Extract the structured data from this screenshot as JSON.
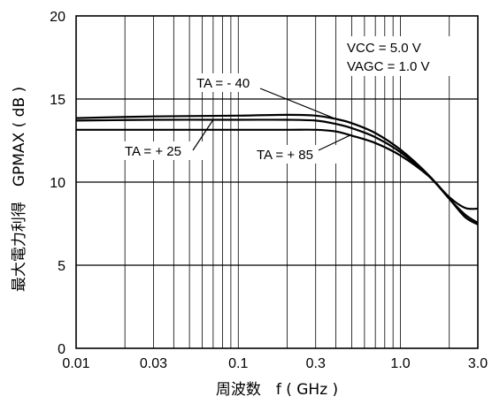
{
  "chart_data": {
    "type": "line",
    "x_scale": "log",
    "xlim": [
      0.01,
      3.0
    ],
    "ylim": [
      0,
      20
    ],
    "xlabel": "周波数　f ( GHz )",
    "ylabel": "最大電力利得　GPMAX ( dB )",
    "x_tick_labels": [
      "0.01",
      "0.03",
      "0.1",
      "0.3",
      "1.0",
      "3.0"
    ],
    "x_tick_values": [
      0.01,
      0.03,
      0.1,
      0.3,
      1.0,
      3.0
    ],
    "y_tick_labels": [
      "0",
      "5",
      "10",
      "15",
      "20"
    ],
    "y_tick_values": [
      0,
      5,
      10,
      15,
      20
    ],
    "grid": true,
    "conditions": [
      "VCC = 5.0 V",
      "VAGC = 1.0 V"
    ],
    "series": [
      {
        "name": "TA =  - 40",
        "points": [
          [
            0.01,
            13.85
          ],
          [
            0.03,
            13.95
          ],
          [
            0.1,
            14.0
          ],
          [
            0.2,
            14.05
          ],
          [
            0.3,
            14.0
          ],
          [
            0.4,
            13.8
          ],
          [
            0.5,
            13.55
          ],
          [
            0.7,
            12.95
          ],
          [
            1.0,
            11.95
          ],
          [
            1.5,
            10.4
          ],
          [
            2.0,
            9.0
          ],
          [
            2.5,
            8.05
          ],
          [
            3.0,
            7.55
          ]
        ]
      },
      {
        "name": "TA =  + 25",
        "points": [
          [
            0.01,
            13.7
          ],
          [
            0.03,
            13.75
          ],
          [
            0.1,
            13.75
          ],
          [
            0.2,
            13.75
          ],
          [
            0.3,
            13.7
          ],
          [
            0.4,
            13.5
          ],
          [
            0.5,
            13.25
          ],
          [
            0.7,
            12.7
          ],
          [
            1.0,
            11.8
          ],
          [
            1.5,
            10.35
          ],
          [
            2.0,
            9.0
          ],
          [
            2.5,
            7.9
          ],
          [
            3.0,
            7.45
          ]
        ]
      },
      {
        "name": "TA =  + 85",
        "points": [
          [
            0.01,
            13.15
          ],
          [
            0.03,
            13.15
          ],
          [
            0.1,
            13.15
          ],
          [
            0.2,
            13.15
          ],
          [
            0.3,
            13.15
          ],
          [
            0.4,
            13.05
          ],
          [
            0.5,
            12.8
          ],
          [
            0.7,
            12.35
          ],
          [
            1.0,
            11.6
          ],
          [
            1.5,
            10.35
          ],
          [
            2.0,
            9.1
          ],
          [
            2.5,
            8.45
          ],
          [
            3.0,
            8.4
          ]
        ]
      }
    ]
  },
  "colors": {
    "line": "#000000",
    "grid": "#000000",
    "background": "#ffffff"
  }
}
